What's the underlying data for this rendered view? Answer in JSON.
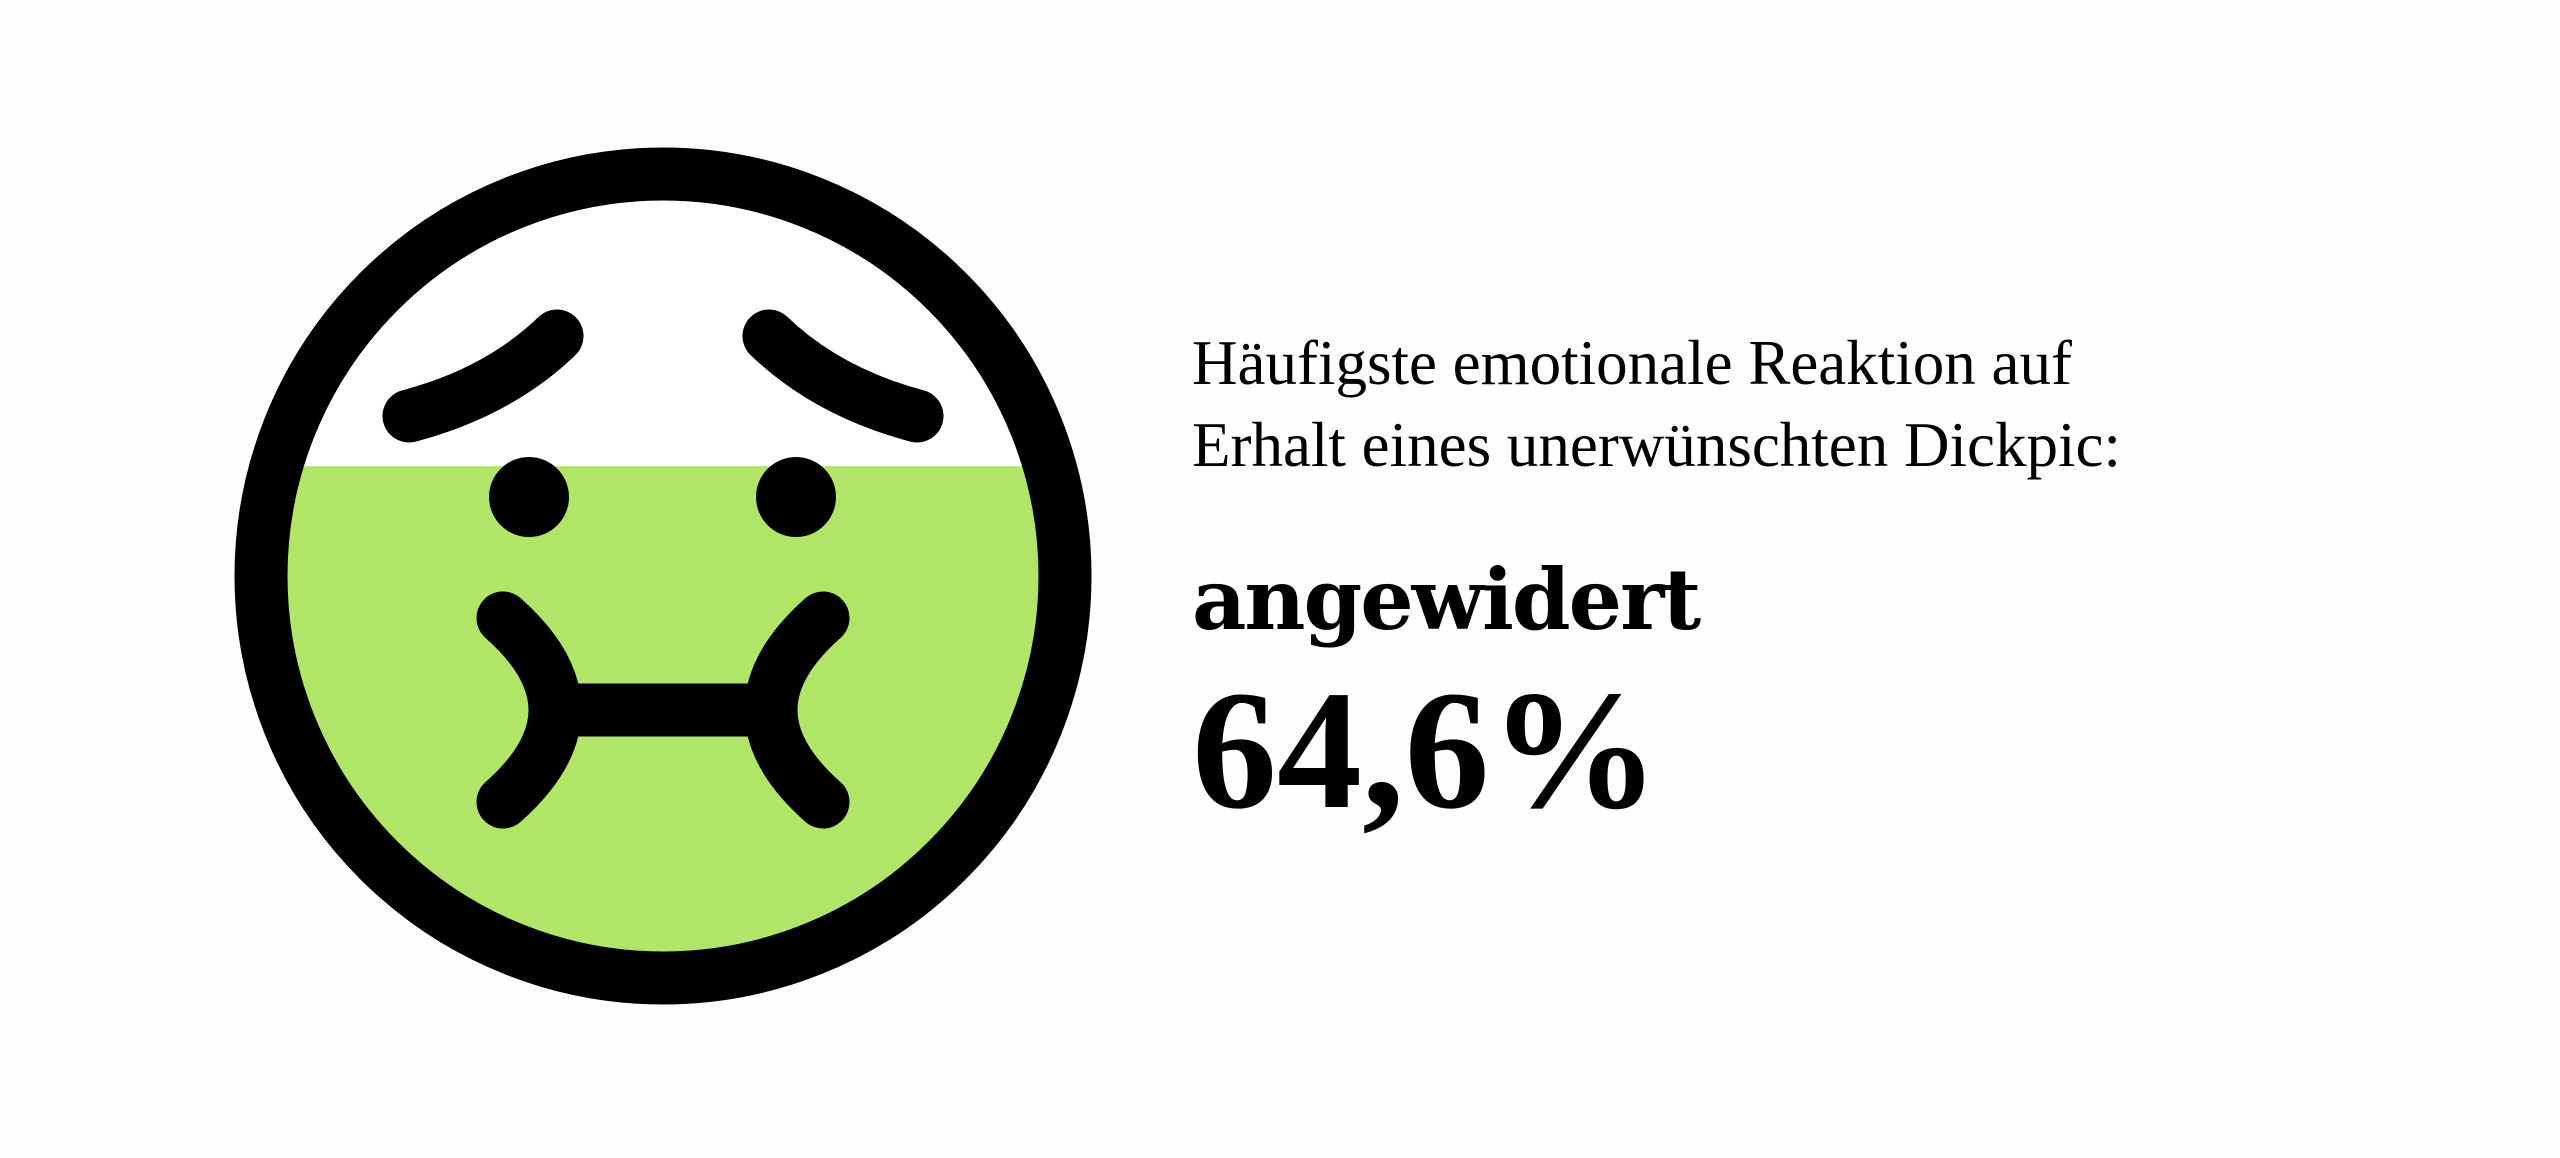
{
  "caption": {
    "line1": "Häufigste emotionale Reaktion auf",
    "line2": "Erhalt eines unerwünschten Dickpic:"
  },
  "result": {
    "emotion": "angewidert",
    "percent_label": "64,6%",
    "percent_value": 64.6
  },
  "colors": {
    "fill": "#b0e567",
    "outline": "#000000",
    "background": "#fefefe"
  },
  "icon": "nauseated-face-icon"
}
